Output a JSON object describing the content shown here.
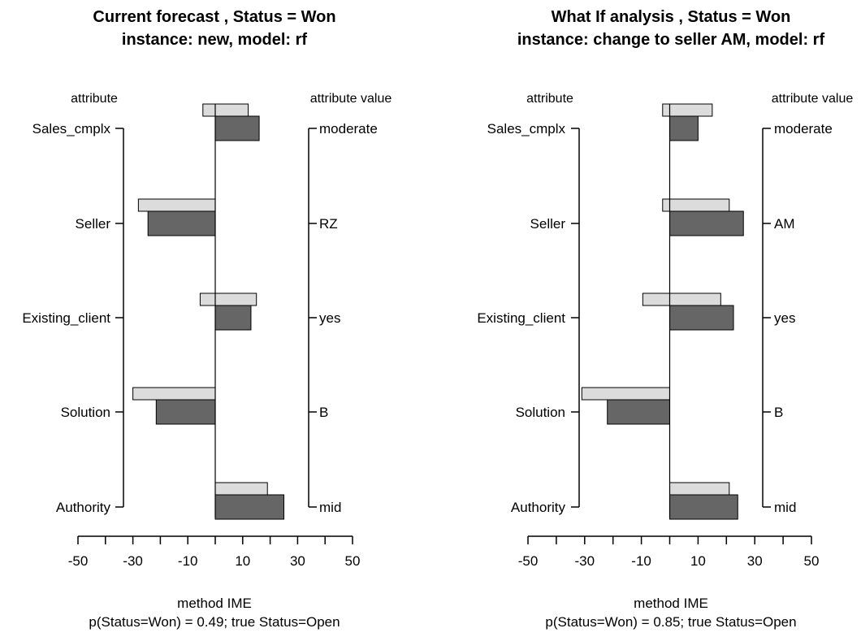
{
  "chart_data": [
    {
      "type": "bar",
      "title": "Current forecast , Status = Won",
      "subtitle": "instance: new, model: rf",
      "left_axis_title": "attribute",
      "right_axis_title": "attribute value",
      "categories": [
        "Sales_cmplx",
        "Seller",
        "Existing_client",
        "Solution",
        "Authority"
      ],
      "attribute_values": [
        "moderate",
        "RZ",
        "yes",
        "B",
        "mid"
      ],
      "series": [
        {
          "values": [
            -4.5,
            -28,
            -5.5,
            -30,
            0
          ],
          "values_right": [
            12,
            0,
            15,
            0,
            19
          ],
          "color": "#dcdcdc"
        },
        {
          "values": [
            16,
            -24.5,
            13,
            -21.5,
            25
          ],
          "color": "#666666"
        }
      ],
      "xlim": [
        -50,
        50
      ],
      "xticks": [
        -50,
        -40,
        -30,
        -20,
        -10,
        0,
        10,
        20,
        30,
        40,
        50
      ],
      "xtick_labels": [
        "-50",
        "-30",
        "-10",
        "10",
        "30",
        "50"
      ],
      "xtick_label_values": [
        -50,
        -30,
        -10,
        10,
        30,
        50
      ],
      "xlabel": "method IME",
      "footer": "p(Status=Won) = 0.49;  true Status=Open"
    },
    {
      "type": "bar",
      "title": "What If analysis , Status = Won",
      "subtitle": "instance: change to seller AM, model: rf",
      "left_axis_title": "attribute",
      "right_axis_title": "attribute value",
      "categories": [
        "Sales_cmplx",
        "Seller",
        "Existing_client",
        "Solution",
        "Authority"
      ],
      "attribute_values": [
        "moderate",
        "AM",
        "yes",
        "B",
        "mid"
      ],
      "series": [
        {
          "values": [
            -2.5,
            -2.5,
            -9.5,
            -31,
            0
          ],
          "values_right": [
            15,
            21,
            18,
            0,
            21
          ],
          "color": "#dcdcdc"
        },
        {
          "values": [
            10,
            26,
            22.5,
            -22,
            24
          ],
          "color": "#666666"
        }
      ],
      "xlim": [
        -50,
        50
      ],
      "xticks": [
        -50,
        -40,
        -30,
        -20,
        -10,
        0,
        10,
        20,
        30,
        40,
        50
      ],
      "xtick_labels": [
        "-50",
        "-30",
        "-10",
        "10",
        "30",
        "50"
      ],
      "xtick_label_values": [
        -50,
        -30,
        -10,
        10,
        30,
        50
      ],
      "xlabel": "method IME",
      "footer": "p(Status=Won) = 0.85;  true Status=Open"
    }
  ]
}
